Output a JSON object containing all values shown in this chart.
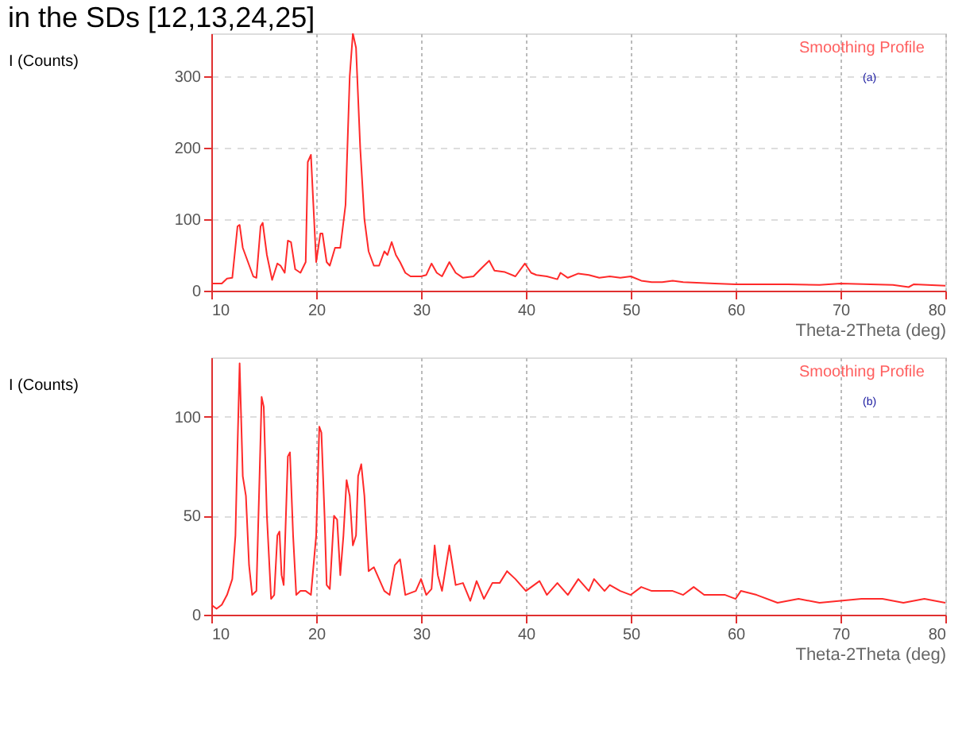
{
  "chart_data": [
    {
      "type": "line",
      "title": "in the SDs [12,13,24,25]",
      "xlabel": "Theta-2Theta (deg)",
      "ylabel": "I (Counts)",
      "annotations": [
        "Smoothing Profile",
        "(a)"
      ],
      "grid": true,
      "xlim": [
        10,
        80
      ],
      "ylim": [
        0,
        360
      ],
      "xticks": [
        10,
        20,
        30,
        40,
        50,
        60,
        70,
        80
      ],
      "yticks": [
        0,
        100,
        200,
        300
      ],
      "series": [
        {
          "color": "#ff2a2a",
          "x": [
            10,
            11,
            11.5,
            12,
            12.5,
            12.7,
            13,
            13.5,
            14,
            14.3,
            14.7,
            14.9,
            15.3,
            15.8,
            16.3,
            16.6,
            17,
            17.3,
            17.6,
            18,
            18.5,
            19,
            19.2,
            19.5,
            19.8,
            20,
            20.4,
            20.6,
            21,
            21.3,
            21.8,
            22.3,
            22.8,
            23.2,
            23.5,
            23.8,
            24.2,
            24.6,
            25,
            25.5,
            26,
            26.5,
            26.8,
            27.2,
            27.6,
            28,
            28.5,
            29,
            30,
            30.5,
            31,
            31.5,
            32,
            32.7,
            33.3,
            34,
            35,
            35.8,
            36.5,
            37,
            38,
            39,
            39.9,
            40.5,
            41,
            42,
            43,
            43.3,
            44,
            45,
            46,
            47,
            48,
            49,
            50,
            51,
            52,
            53,
            54,
            55,
            58,
            60,
            65,
            68,
            70,
            75,
            76.5,
            77,
            80
          ],
          "values": [
            10,
            10,
            17,
            18,
            90,
            92,
            60,
            40,
            20,
            18,
            90,
            95,
            50,
            15,
            38,
            35,
            25,
            70,
            68,
            30,
            25,
            40,
            180,
            190,
            100,
            40,
            80,
            80,
            40,
            35,
            60,
            60,
            120,
            300,
            360,
            340,
            200,
            100,
            55,
            35,
            35,
            55,
            50,
            68,
            50,
            40,
            25,
            20,
            20,
            22,
            38,
            25,
            20,
            40,
            25,
            18,
            20,
            32,
            42,
            28,
            26,
            20,
            38,
            25,
            22,
            20,
            16,
            25,
            18,
            24,
            22,
            18,
            20,
            18,
            20,
            14,
            12,
            12,
            14,
            12,
            10,
            9,
            9,
            8,
            10,
            8,
            5,
            9,
            7
          ]
        }
      ]
    },
    {
      "type": "line",
      "xlabel": "Theta-2Theta (deg)",
      "ylabel": "I (Counts)",
      "annotations": [
        "Smoothing Profile",
        "(b)"
      ],
      "grid": true,
      "xlim": [
        10,
        80
      ],
      "ylim": [
        0,
        130
      ],
      "xticks": [
        10,
        20,
        30,
        40,
        50,
        60,
        70,
        80
      ],
      "yticks": [
        0,
        50,
        100
      ],
      "series": [
        {
          "color": "#ff2a2a",
          "x": [
            10,
            10.5,
            11,
            11.5,
            12,
            12.3,
            12.5,
            12.7,
            13,
            13.3,
            13.6,
            13.9,
            14.3,
            14.6,
            14.8,
            15,
            15.3,
            15.7,
            16,
            16.3,
            16.5,
            16.7,
            16.9,
            17.3,
            17.5,
            17.8,
            18.1,
            18.5,
            19,
            19.5,
            20,
            20.3,
            20.5,
            20.8,
            21,
            21.3,
            21.7,
            22,
            22.3,
            22.6,
            22.9,
            23.2,
            23.5,
            23.8,
            24,
            24.3,
            24.6,
            25,
            25.5,
            26,
            26.5,
            27,
            27.5,
            28,
            28.5,
            29.5,
            30,
            30.5,
            31,
            31.3,
            31.6,
            32,
            32.7,
            33.3,
            34,
            34.7,
            35.3,
            36,
            36.8,
            37.5,
            38.2,
            39,
            40,
            41.3,
            42,
            43,
            44,
            45,
            46,
            46.5,
            47.5,
            48,
            49,
            50,
            51,
            52,
            54,
            55,
            56,
            57,
            59,
            60,
            60.5,
            62,
            64,
            66,
            68,
            70,
            72,
            74,
            76,
            78,
            80
          ],
          "values": [
            5,
            3,
            5,
            10,
            18,
            40,
            85,
            127,
            70,
            60,
            25,
            10,
            12,
            70,
            110,
            105,
            50,
            8,
            10,
            40,
            42,
            20,
            15,
            80,
            82,
            40,
            10,
            12,
            12,
            10,
            40,
            95,
            92,
            50,
            15,
            13,
            50,
            48,
            20,
            40,
            68,
            60,
            35,
            40,
            70,
            76,
            60,
            22,
            24,
            18,
            12,
            10,
            25,
            28,
            10,
            12,
            18,
            10,
            13,
            35,
            20,
            12,
            35,
            15,
            16,
            7,
            17,
            8,
            16,
            16,
            22,
            18,
            12,
            17,
            10,
            16,
            10,
            18,
            12,
            18,
            12,
            15,
            12,
            10,
            14,
            12,
            12,
            10,
            14,
            10,
            10,
            8,
            12,
            10,
            6,
            8,
            6,
            7,
            8,
            8,
            6,
            8,
            6
          ]
        }
      ]
    }
  ]
}
